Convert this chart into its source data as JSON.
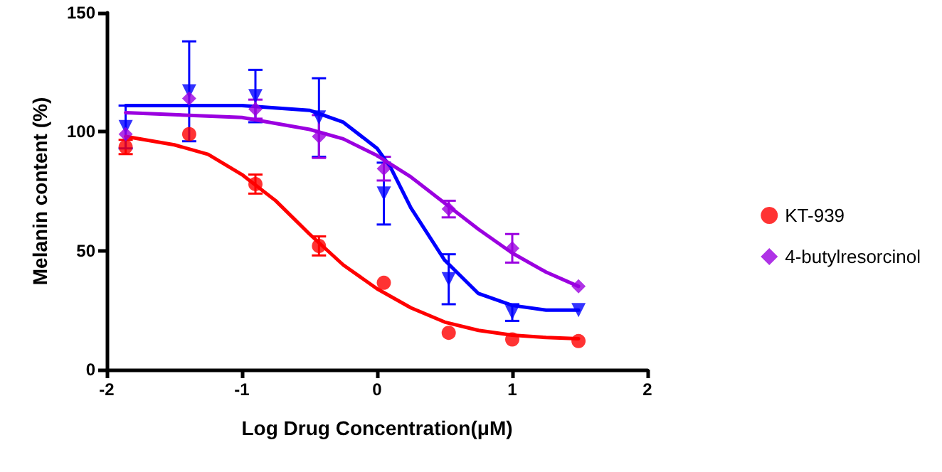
{
  "chart_data": {
    "type": "scatter",
    "xlabel": "Log Drug Concentration(μM)",
    "ylabel": "Melanin content (%)",
    "xlim": [
      -2,
      2
    ],
    "xticks": [
      -2,
      -1,
      0,
      1,
      2
    ],
    "ylim": [
      0,
      150
    ],
    "yticks": [
      0,
      50,
      100,
      150
    ],
    "grid": false,
    "legend": "right",
    "line_style": "solid",
    "series": [
      {
        "name": "KT-939",
        "color": "#ff0000",
        "marker": "circle",
        "x": [
          -1.86,
          -1.39,
          -0.9,
          -0.43,
          0.05,
          0.53,
          1.0,
          1.49
        ],
        "values": [
          93.6,
          99,
          78,
          52,
          36.5,
          15.5,
          12.7,
          12
        ],
        "errors": [
          3,
          null,
          4,
          4,
          null,
          null,
          null,
          null
        ]
      },
      {
        "color": "#0000ff",
        "marker": "triangle",
        "x": [
          -1.86,
          -1.39,
          -0.9,
          -0.43,
          0.05,
          0.53,
          1.0,
          1.49
        ],
        "values": [
          102,
          117,
          115,
          106,
          74,
          38,
          24,
          25
        ],
        "errors": [
          9,
          21,
          11,
          16.5,
          13,
          10.5,
          3.5,
          null
        ]
      },
      {
        "name": "4-butylresorcinol",
        "color": "#9b00e0",
        "marker": "diamond",
        "x": [
          -1.86,
          -1.39,
          -0.9,
          -0.43,
          0.05,
          0.53,
          1.0,
          1.49
        ],
        "values": [
          99,
          114,
          109.5,
          98,
          84.5,
          67.5,
          51,
          35
        ],
        "errors": [
          null,
          null,
          4,
          9,
          5,
          3.5,
          6,
          null
        ]
      },
      {
        "type": "line",
        "color": "#ff0000",
        "marker": "none",
        "x": [
          -1.86,
          -1.5,
          -1.25,
          -1,
          -0.75,
          -0.5,
          -0.25,
          0,
          0.25,
          0.5,
          0.75,
          1,
          1.25,
          1.49
        ],
        "values": [
          98,
          94.5,
          90.5,
          82,
          71,
          57,
          44,
          34,
          26,
          20,
          16.5,
          14.5,
          13.5,
          13
        ]
      },
      {
        "type": "line",
        "color": "#0000ff",
        "marker": "none",
        "x": [
          -1.86,
          -1,
          -0.5,
          -0.25,
          0,
          0.1,
          0.25,
          0.5,
          0.75,
          1,
          1.25,
          1.49
        ],
        "values": [
          111,
          111,
          109,
          104,
          93,
          85,
          68,
          46,
          32,
          27,
          25,
          25
        ]
      },
      {
        "type": "line",
        "color": "#9b00e0",
        "marker": "none",
        "x": [
          -1.86,
          -1,
          -0.5,
          -0.25,
          0,
          0.25,
          0.5,
          0.75,
          1,
          1.25,
          1.49
        ],
        "values": [
          108,
          106,
          101,
          97,
          90,
          81,
          70,
          59,
          49,
          41,
          35
        ]
      }
    ]
  }
}
